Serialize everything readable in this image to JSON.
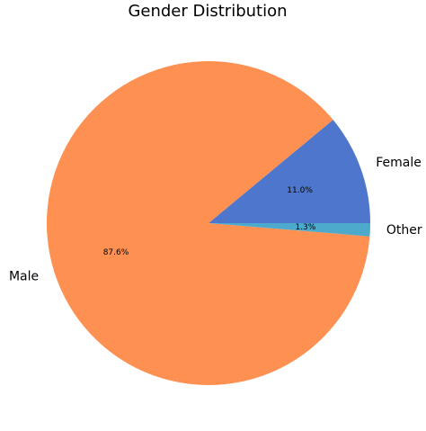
{
  "chart_data": {
    "type": "pie",
    "title": "Gender Distribution",
    "categories": [
      "Female",
      "Male",
      "Other"
    ],
    "values": [
      11.0,
      87.6,
      1.3
    ],
    "value_labels": [
      "11.0%",
      "87.6%",
      "1.3%"
    ],
    "colors": [
      "#4e76cc",
      "#fe9052",
      "#4daacc"
    ]
  }
}
